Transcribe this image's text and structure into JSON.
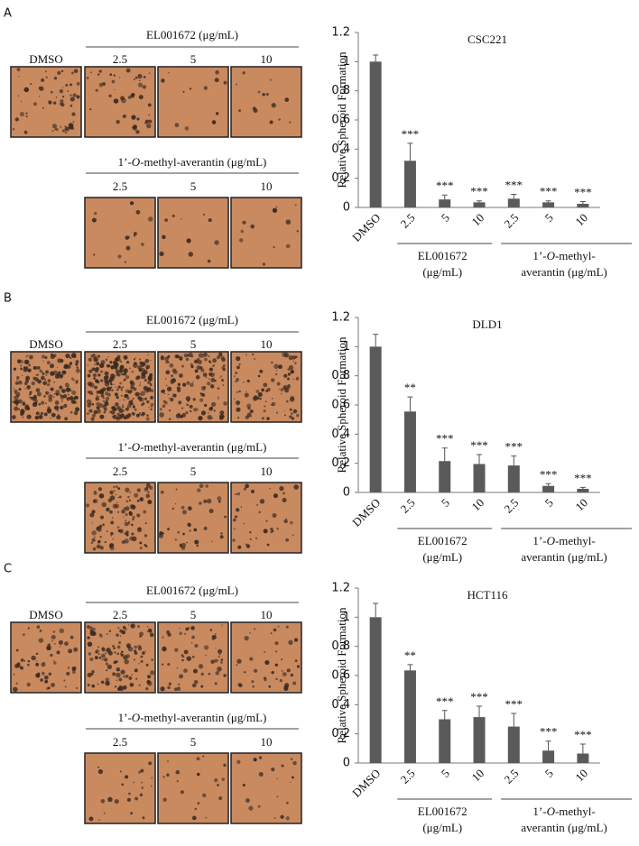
{
  "chart_data": [
    {
      "type": "bar",
      "panel_label": "A",
      "title": "CSC221",
      "y_label": "Relative Spheroid Formation",
      "categories": [
        "DMSO",
        "2.5",
        "5",
        "10",
        "2.5",
        "5",
        "10"
      ],
      "values": [
        1,
        0.32,
        0.055,
        0.035,
        0.06,
        0.035,
        0.025
      ],
      "errors": [
        0.045,
        0.12,
        0.03,
        0.01,
        0.03,
        0.01,
        0.015
      ],
      "annotations": [
        null,
        "***",
        "***",
        "***",
        "***",
        "***",
        "***"
      ],
      "color": "#5a5a5a",
      "ylim": [
        0,
        1.2
      ],
      "yticks": [
        0,
        0.2,
        0.4,
        0.6,
        0.8,
        1,
        1.2
      ],
      "groups": [
        {
          "lines": [
            [
              "EL001672"
            ],
            [
              "(μg/mL)"
            ]
          ]
        },
        {
          "lines": [
            [
              "1’-",
              "O",
              "-methyl-"
            ],
            [
              "averantin (μg/mL)"
            ]
          ]
        }
      ],
      "images": {
        "control": "DMSO",
        "rows": [
          {
            "header": [
              "EL001672  (μg/mL)"
            ],
            "doses": [
              "2.5",
              "5",
              "10"
            ]
          },
          {
            "header": [
              "1’-",
              "O",
              "-methyl-averantin (μg/mL)"
            ],
            "doses": [
              "2.5",
              "5",
              "10"
            ]
          }
        ]
      }
    },
    {
      "type": "bar",
      "panel_label": "B",
      "title": "DLD1",
      "y_label": "Relative Spheroid Formation",
      "categories": [
        "DMSO",
        "2.5",
        "5",
        "10",
        "2.5",
        "5",
        "10"
      ],
      "values": [
        1,
        0.555,
        0.215,
        0.195,
        0.185,
        0.045,
        0.025
      ],
      "errors": [
        0.085,
        0.1,
        0.09,
        0.065,
        0.065,
        0.015,
        0.01
      ],
      "annotations": [
        null,
        "**",
        "***",
        "***",
        "***",
        "***",
        "***"
      ],
      "color": "#5a5a5a",
      "ylim": [
        0,
        1.2
      ],
      "yticks": [
        0,
        0.2,
        0.4,
        0.6,
        0.8,
        1,
        1.2
      ],
      "groups": [
        {
          "lines": [
            [
              "EL001672"
            ],
            [
              "(μg/mL)"
            ]
          ]
        },
        {
          "lines": [
            [
              "1’-",
              "O",
              "-methyl-"
            ],
            [
              "averantin (μg/mL)"
            ]
          ]
        }
      ],
      "images": {
        "control": "DMSO",
        "rows": [
          {
            "header": [
              "EL001672  (μg/mL)"
            ],
            "doses": [
              "2.5",
              "5",
              "10"
            ]
          },
          {
            "header": [
              "1’-",
              "O",
              "-methyl-averantin (μg/mL)"
            ],
            "doses": [
              "2.5",
              "5",
              "10"
            ]
          }
        ]
      }
    },
    {
      "type": "bar",
      "panel_label": "C",
      "title": "HCT116",
      "y_label": "Relative Spheroid Formation",
      "categories": [
        "DMSO",
        "2.5",
        "5",
        "10",
        "2.5",
        "5",
        "10"
      ],
      "values": [
        1,
        0.635,
        0.3,
        0.315,
        0.25,
        0.085,
        0.065
      ],
      "errors": [
        0.095,
        0.04,
        0.06,
        0.075,
        0.09,
        0.065,
        0.065
      ],
      "annotations": [
        null,
        "**",
        "***",
        "***",
        "***",
        "***",
        "***"
      ],
      "color": "#5a5a5a",
      "ylim": [
        0,
        1.2
      ],
      "yticks": [
        0,
        0.2,
        0.4,
        0.6,
        0.8,
        1,
        1.2
      ],
      "groups": [
        {
          "lines": [
            [
              "EL001672"
            ],
            [
              "(μg/mL)"
            ]
          ]
        },
        {
          "lines": [
            [
              "1’-",
              "O",
              "-methyl-"
            ],
            [
              "averantin (μg/mL)"
            ]
          ]
        }
      ],
      "images": {
        "control": "DMSO",
        "rows": [
          {
            "header": [
              "EL001672  (μg/mL)"
            ],
            "doses": [
              "2.5",
              "5",
              "10"
            ]
          },
          {
            "header": [
              "1’-",
              "O",
              "-methyl-averantin (μg/mL)"
            ],
            "doses": [
              "2.5",
              "5",
              "10"
            ]
          }
        ]
      }
    }
  ]
}
